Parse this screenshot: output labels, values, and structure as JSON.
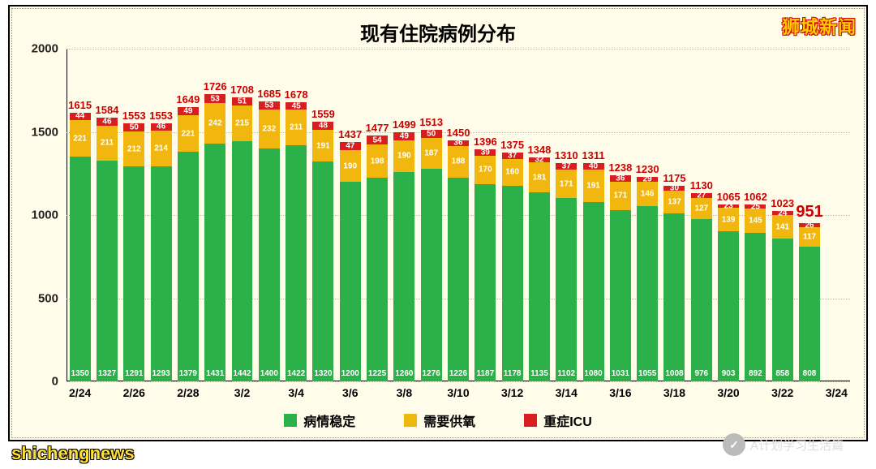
{
  "brand": "狮城新闻",
  "title": "现有住院病例分布",
  "watermark_bl": "shichengnews",
  "watermark_br": "A计划学习生活篇",
  "chart": {
    "type": "stacked-bar",
    "background_color": "#fffde9",
    "border_color": "#000000",
    "grid_color": "#bbbbbb",
    "title_fontsize": 24,
    "label_color": "#ffffff",
    "total_label_color": "#cc0000",
    "ylim": [
      0,
      2000
    ],
    "ytick_step": 500,
    "yticks": [
      0,
      500,
      1000,
      1500,
      2000
    ],
    "xticks": [
      "2/24",
      "2/26",
      "2/28",
      "3/2",
      "3/4",
      "3/6",
      "3/8",
      "3/10",
      "3/12",
      "3/14",
      "3/16",
      "3/18",
      "3/20",
      "3/22",
      "3/24"
    ],
    "bar_width_ratio": 0.78,
    "series": [
      {
        "key": "stable",
        "label": "病情稳定",
        "color": "#2cb04a"
      },
      {
        "key": "oxygen",
        "label": "需要供氧",
        "color": "#f2b70f"
      },
      {
        "key": "icu",
        "label": "重症ICU",
        "color": "#d81e1e"
      }
    ],
    "bars": [
      {
        "date": "2/24",
        "stable": 1350,
        "oxygen": 221,
        "icu": 44,
        "total": 1615,
        "tick": true
      },
      {
        "date": "2/25",
        "stable": 1327,
        "oxygen": 211,
        "icu": 46,
        "total": 1584,
        "tick": false
      },
      {
        "date": "2/26",
        "stable": 1291,
        "oxygen": 212,
        "icu": 50,
        "total": 1553,
        "tick": true
      },
      {
        "date": "2/27",
        "stable": 1293,
        "oxygen": 214,
        "icu": 46,
        "total": 1553,
        "tick": false
      },
      {
        "date": "2/28",
        "stable": 1379,
        "oxygen": 221,
        "icu": 49,
        "total": 1649,
        "tick": true
      },
      {
        "date": "3/1",
        "stable": 1431,
        "oxygen": 242,
        "icu": 53,
        "total": 1726,
        "tick": false
      },
      {
        "date": "3/2",
        "stable": 1442,
        "oxygen": 215,
        "icu": 51,
        "total": 1708,
        "tick": true
      },
      {
        "date": "3/3",
        "stable": 1400,
        "oxygen": 232,
        "icu": 53,
        "total": 1685,
        "tick": false
      },
      {
        "date": "3/4",
        "stable": 1422,
        "oxygen": 211,
        "icu": 45,
        "total": 1678,
        "tick": true
      },
      {
        "date": "3/5",
        "stable": 1320,
        "oxygen": 191,
        "icu": 48,
        "total": 1559,
        "tick": false
      },
      {
        "date": "3/6",
        "stable": 1200,
        "oxygen": 190,
        "icu": 47,
        "total": 1437,
        "tick": true
      },
      {
        "date": "3/7",
        "stable": 1225,
        "oxygen": 198,
        "icu": 54,
        "total": 1477,
        "tick": false
      },
      {
        "date": "3/8",
        "stable": 1260,
        "oxygen": 190,
        "icu": 49,
        "total": 1499,
        "tick": true
      },
      {
        "date": "3/9",
        "stable": 1276,
        "oxygen": 187,
        "icu": 50,
        "total": 1513,
        "tick": false
      },
      {
        "date": "3/10",
        "stable": 1226,
        "oxygen": 188,
        "icu": 36,
        "total": 1450,
        "tick": true
      },
      {
        "date": "3/11",
        "stable": 1187,
        "oxygen": 170,
        "icu": 39,
        "total": 1396,
        "tick": false
      },
      {
        "date": "3/12",
        "stable": 1178,
        "oxygen": 160,
        "icu": 37,
        "total": 1375,
        "tick": true
      },
      {
        "date": "3/13",
        "stable": 1135,
        "oxygen": 181,
        "icu": 32,
        "total": 1348,
        "tick": false
      },
      {
        "date": "3/14",
        "stable": 1102,
        "oxygen": 171,
        "icu": 37,
        "total": 1310,
        "tick": true
      },
      {
        "date": "3/15",
        "stable": 1080,
        "oxygen": 191,
        "icu": 40,
        "total": 1311,
        "tick": false
      },
      {
        "date": "3/16",
        "stable": 1031,
        "oxygen": 171,
        "icu": 36,
        "total": 1238,
        "tick": true
      },
      {
        "date": "3/17",
        "stable": 1055,
        "oxygen": 146,
        "icu": 29,
        "total": 1230,
        "tick": false
      },
      {
        "date": "3/18",
        "stable": 1008,
        "oxygen": 137,
        "icu": 30,
        "total": 1175,
        "tick": true
      },
      {
        "date": "3/19",
        "stable": 976,
        "oxygen": 127,
        "icu": 27,
        "total": 1130,
        "tick": false
      },
      {
        "date": "3/20",
        "stable": 903,
        "oxygen": 139,
        "icu": 23,
        "total": 1065,
        "tick": true
      },
      {
        "date": "3/21",
        "stable": 892,
        "oxygen": 145,
        "icu": 25,
        "total": 1062,
        "tick": false
      },
      {
        "date": "3/22",
        "stable": 858,
        "oxygen": 141,
        "icu": 24,
        "total": 1023,
        "tick": true
      },
      {
        "date": "3/23",
        "stable": 808,
        "oxygen": 117,
        "icu": 26,
        "total": 951,
        "tick": false,
        "highlight": true
      }
    ]
  }
}
